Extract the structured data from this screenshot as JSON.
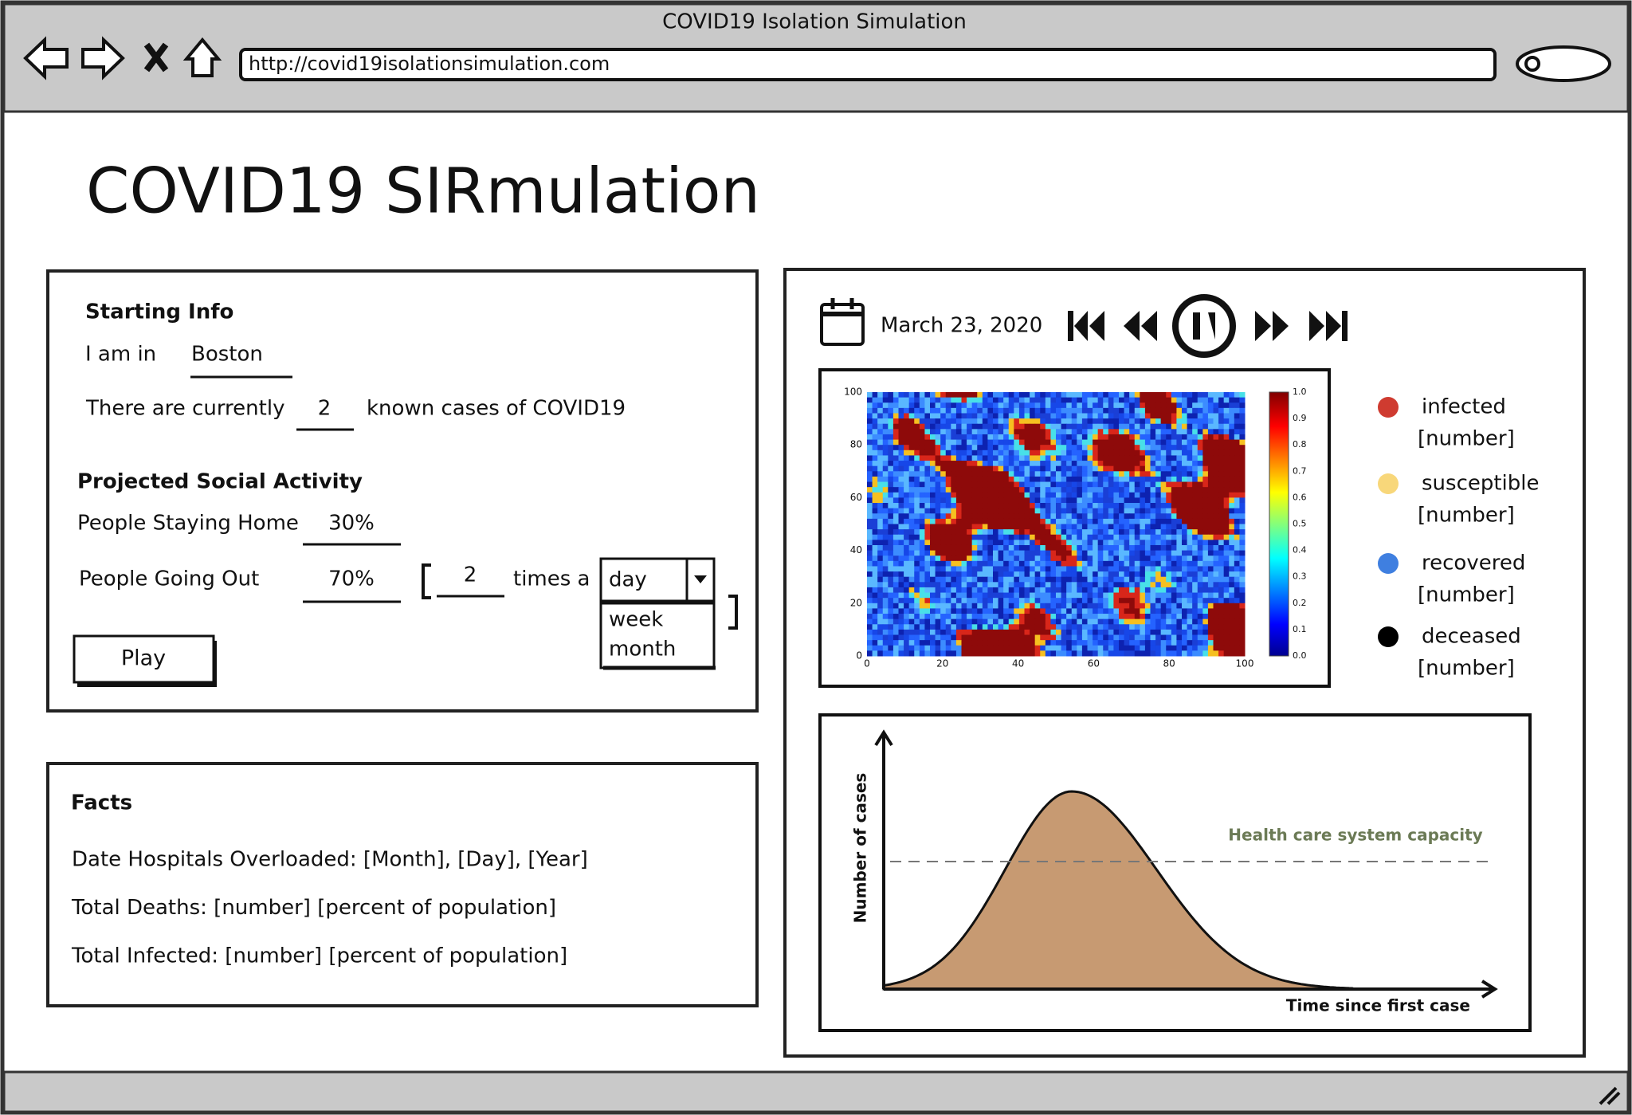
{
  "browser": {
    "window_title": "COVID19 Isolation Simulation",
    "url": "http://covid19isolationsimulation.com"
  },
  "header": {
    "title": "COVID19 SIRmulation"
  },
  "starting_info": {
    "heading": "Starting Info",
    "location_label": "I am in",
    "location": "Boston",
    "cases_prefix": "There are currently",
    "cases": "2",
    "cases_suffix": "known cases of COVID19"
  },
  "social_activity": {
    "heading": "Projected Social Activity",
    "staying_home_label": "People Staying Home",
    "staying_home": "30%",
    "going_out_label": "People Going Out",
    "going_out": "70%",
    "frequency": "2",
    "frequency_label": "times a",
    "period": "day",
    "period_options": [
      "week",
      "month"
    ],
    "play_button": "Play"
  },
  "facts": {
    "heading": "Facts",
    "lines": [
      "Date Hospitals Overloaded: [Month], [Day], [Year]",
      "Total Deaths: [number] [percent of population]",
      "Total Infected: [number] [percent of population]"
    ]
  },
  "simulation": {
    "date": "March 23, 2020",
    "heatmap": {
      "y_ticks": [
        "0",
        "20",
        "40",
        "60",
        "80",
        "100"
      ],
      "x_ticks": [
        "0",
        "20",
        "40",
        "60",
        "80",
        "100"
      ],
      "colorbar_ticks": [
        "0.0",
        "0.1",
        "0.2",
        "0.3",
        "0.4",
        "0.5",
        "0.6",
        "0.7",
        "0.8",
        "0.9",
        "1.0"
      ]
    },
    "legend": [
      {
        "label": "infected",
        "value": "[number]",
        "color": "#cf3b30"
      },
      {
        "label": "susceptible",
        "value": "[number]",
        "color": "#f8d77a"
      },
      {
        "label": "recovered",
        "value": "[number]",
        "color": "#3f7fe0"
      },
      {
        "label": "deceased",
        "value": "[number]",
        "color": "#000000"
      }
    ]
  },
  "epidemic_chart": {
    "y_label": "Number of cases",
    "x_label": "Time since first case",
    "capacity_label": "Health care system capacity"
  }
}
